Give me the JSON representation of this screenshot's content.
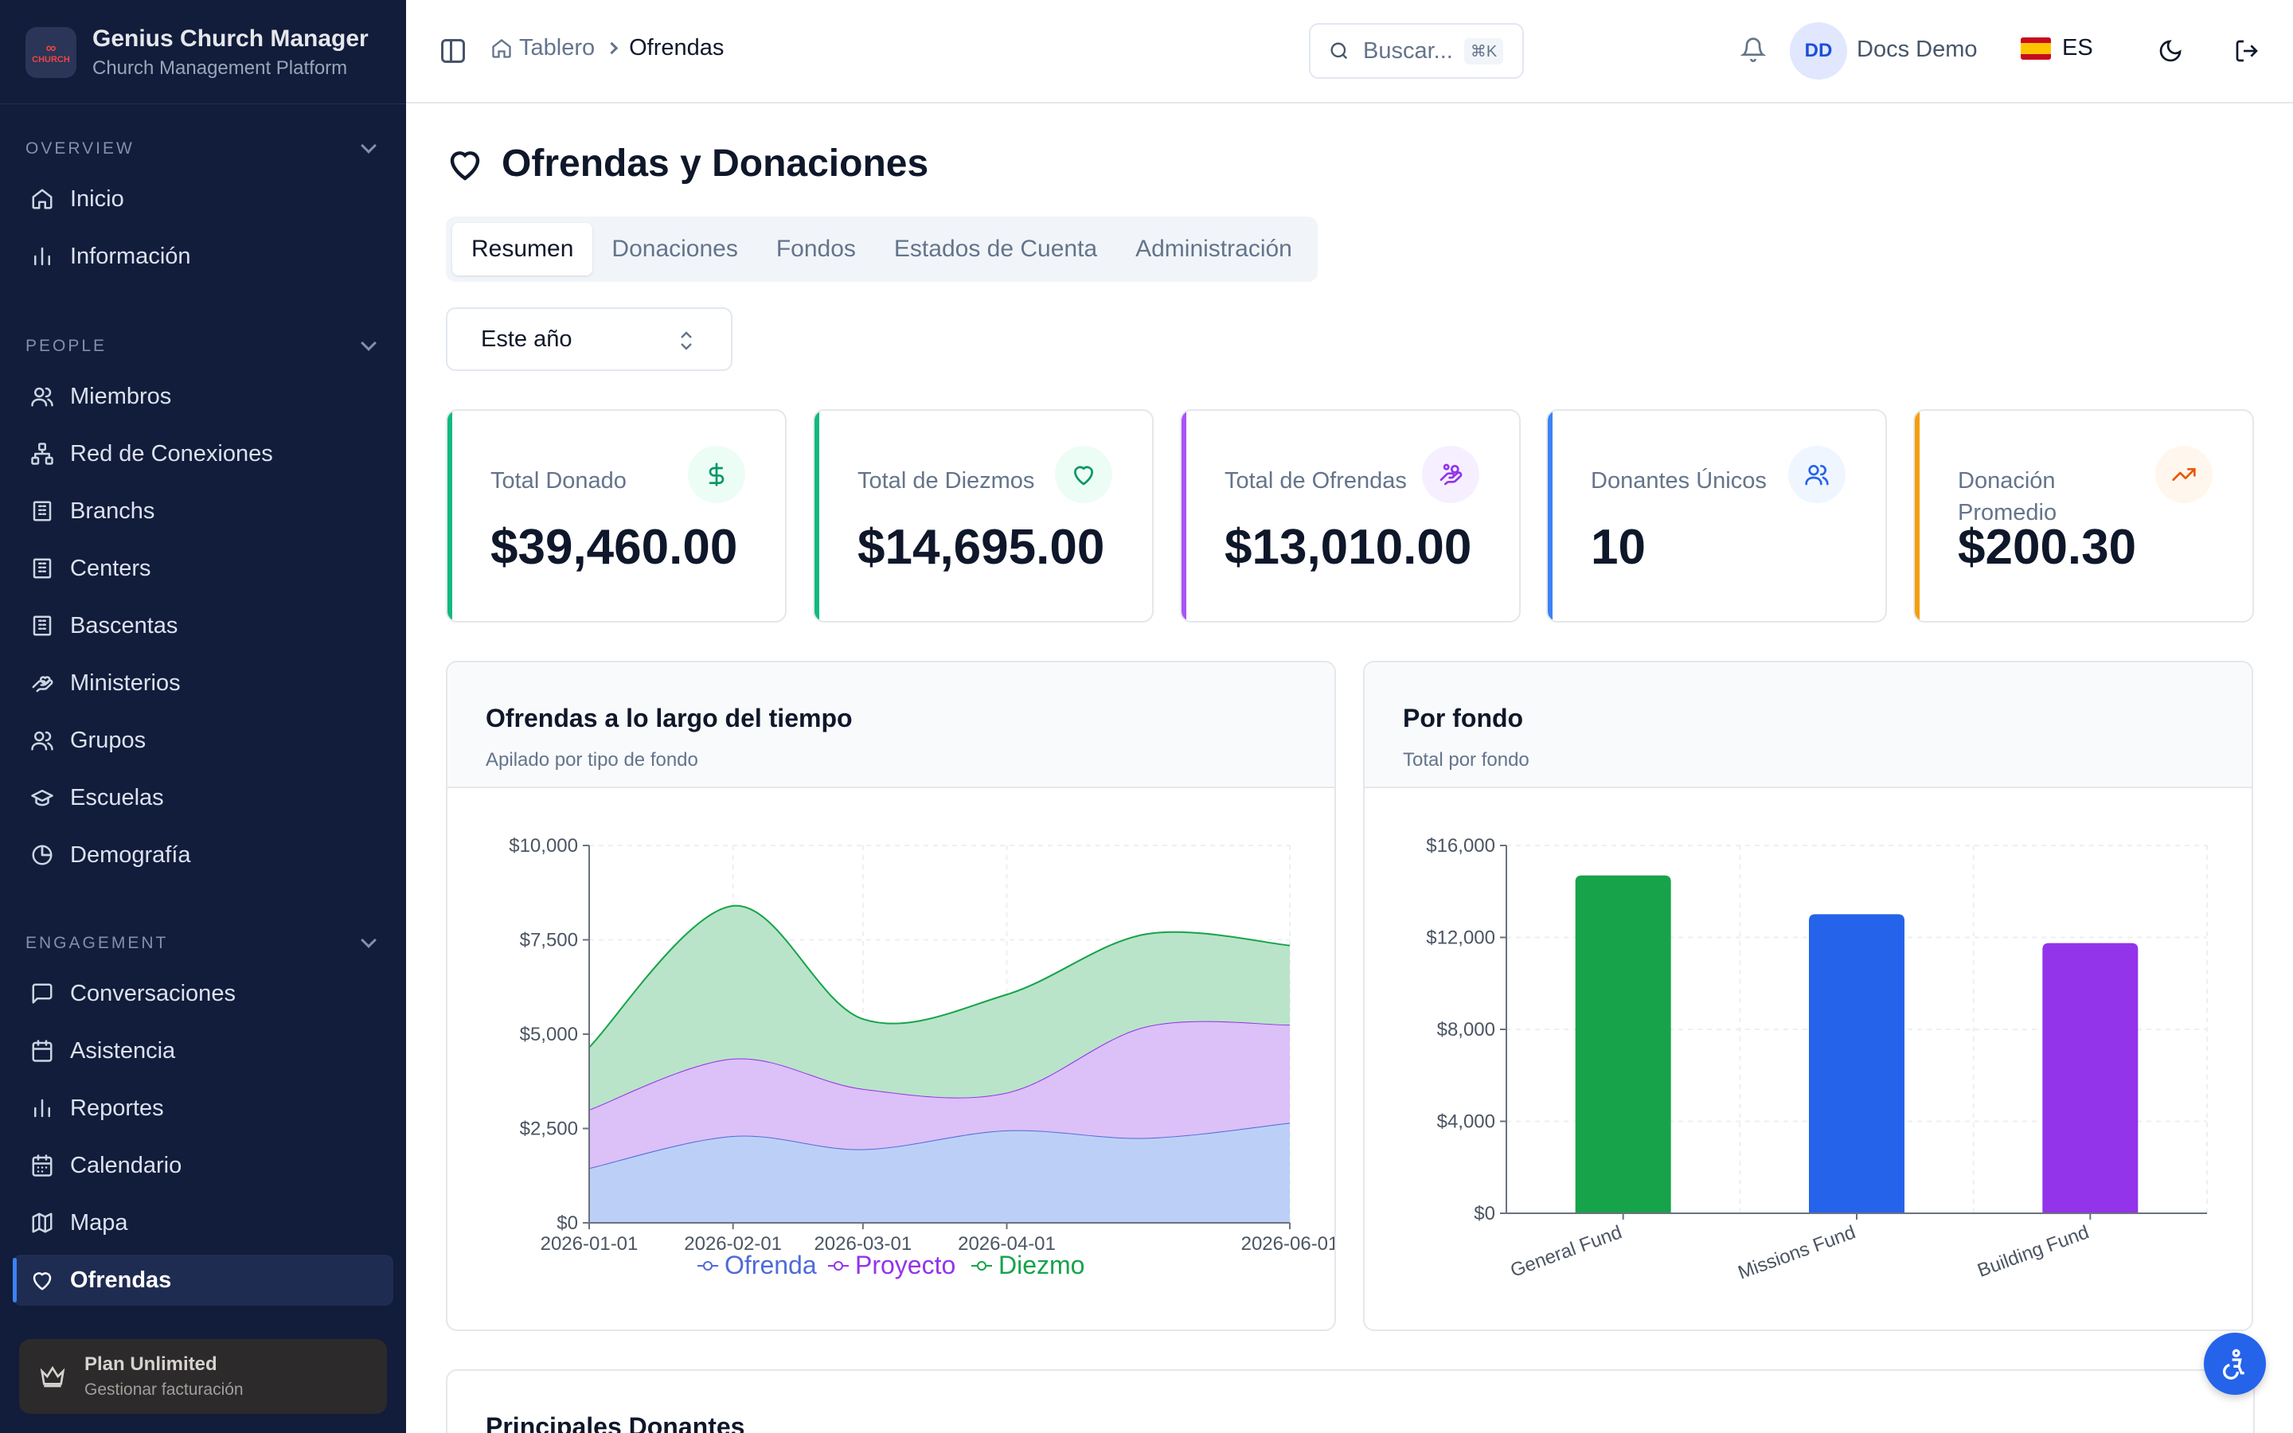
{
  "brand": {
    "title": "Genius Church Manager",
    "subtitle": "Church Management Platform",
    "logo_text": "CHURCH MANAGER"
  },
  "sidebar": {
    "sections": [
      {
        "label": "OVERVIEW",
        "items": [
          {
            "label": "Inicio",
            "icon": "home-icon"
          },
          {
            "label": "Información",
            "icon": "bar-chart-icon"
          }
        ]
      },
      {
        "label": "PEOPLE",
        "items": [
          {
            "label": "Miembros",
            "icon": "users-icon"
          },
          {
            "label": "Red de Conexiones",
            "icon": "network-icon"
          },
          {
            "label": "Branchs",
            "icon": "building-icon"
          },
          {
            "label": "Centers",
            "icon": "building-icon"
          },
          {
            "label": "Bascentas",
            "icon": "building-icon"
          },
          {
            "label": "Ministerios",
            "icon": "hand-heart-icon"
          },
          {
            "label": "Grupos",
            "icon": "users-icon"
          },
          {
            "label": "Escuelas",
            "icon": "graduation-cap-icon"
          },
          {
            "label": "Demografía",
            "icon": "pie-chart-icon"
          }
        ]
      },
      {
        "label": "ENGAGEMENT",
        "items": [
          {
            "label": "Conversaciones",
            "icon": "message-square-icon"
          },
          {
            "label": "Asistencia",
            "icon": "calendar-check-icon"
          },
          {
            "label": "Reportes",
            "icon": "bar-chart-icon"
          },
          {
            "label": "Calendario",
            "icon": "calendar-icon"
          },
          {
            "label": "Mapa",
            "icon": "map-icon"
          },
          {
            "label": "Ofrendas",
            "icon": "heart-icon",
            "active": true
          }
        ]
      }
    ],
    "plan": {
      "title": "Plan Unlimited",
      "subtitle": "Gestionar facturación"
    }
  },
  "header": {
    "breadcrumb": [
      "Tablero",
      "Ofrendas"
    ],
    "search": {
      "placeholder": "Buscar...",
      "shortcut": "⌘K"
    },
    "user": {
      "initials": "DD",
      "name": "Docs Demo"
    },
    "language": "ES"
  },
  "page": {
    "title": "Ofrendas y Donaciones",
    "tabs": [
      "Resumen",
      "Donaciones",
      "Fondos",
      "Estados de Cuenta",
      "Administración"
    ],
    "active_tab": "Resumen",
    "period_select": "Este año"
  },
  "stats": [
    {
      "label": "Total Donado",
      "value": "$39,460.00",
      "accent": "#10b981",
      "icon_bg": "#ecfdf5",
      "icon_color": "#059669",
      "icon": "dollar-icon"
    },
    {
      "label": "Total de Diezmos",
      "value": "$14,695.00",
      "accent": "#10b981",
      "icon_bg": "#ecfdf5",
      "icon_color": "#059669",
      "icon": "heart-icon"
    },
    {
      "label": "Total de Ofrendas",
      "value": "$13,010.00",
      "accent": "#a855f7",
      "icon_bg": "#f5efff",
      "icon_color": "#9333ea",
      "icon": "hand-coins-icon"
    },
    {
      "label": "Donantes Únicos",
      "value": "10",
      "accent": "#3b82f6",
      "icon_bg": "#eff6ff",
      "icon_color": "#2563eb",
      "icon": "users-icon"
    },
    {
      "label": "Donación Promedio",
      "value": "$200.30",
      "accent": "#f59e0b",
      "icon_bg": "#fff7ed",
      "icon_color": "#ea580c",
      "icon": "trending-up-icon"
    }
  ],
  "panels": {
    "area": {
      "title": "Ofrendas a lo largo del tiempo",
      "subtitle": "Apilado por tipo de fondo"
    },
    "bar": {
      "title": "Por fondo",
      "subtitle": "Total por fondo"
    },
    "top": {
      "title": "Principales Donantes"
    }
  },
  "chart_data": [
    {
      "type": "area",
      "stacked": true,
      "x": [
        "2026-01-01",
        "2026-02-01",
        "2026-03-01",
        "2026-04-01",
        "2026-05-01",
        "2026-06-01"
      ],
      "x_tick_labels": [
        "2026-01-01",
        "2026-02-01",
        "2026-03-01",
        "2026-04-01",
        "2026-06-01"
      ],
      "series": [
        {
          "name": "Ofrenda",
          "values": [
            1450,
            2300,
            1950,
            2450,
            2250,
            2650
          ],
          "color": "#4f6bd8",
          "fill": "#bcd0f7"
        },
        {
          "name": "Proyecto",
          "values": [
            1550,
            2050,
            1600,
            1000,
            2950,
            2600
          ],
          "color": "#9333ea",
          "fill": "#dcc0f8"
        },
        {
          "name": "Diezmo",
          "values": [
            1650,
            4050,
            1850,
            2600,
            2450,
            2100
          ],
          "color": "#16a34a",
          "fill": "#b9e4c9"
        }
      ],
      "ylim": [
        0,
        10000
      ],
      "y_ticks": [
        "$0",
        "$2,500",
        "$5,000",
        "$7,500",
        "$10,000"
      ],
      "grid": true,
      "legend": "bottom"
    },
    {
      "type": "bar",
      "categories": [
        "General Fund",
        "Missions Fund",
        "Building Fund"
      ],
      "values": [
        14695,
        13010,
        11755
      ],
      "colors": [
        "#16a34a",
        "#2563eb",
        "#9333ea"
      ],
      "ylim": [
        0,
        16000
      ],
      "y_ticks": [
        "$0",
        "$4,000",
        "$8,000",
        "$12,000",
        "$16,000"
      ],
      "grid": true
    }
  ]
}
